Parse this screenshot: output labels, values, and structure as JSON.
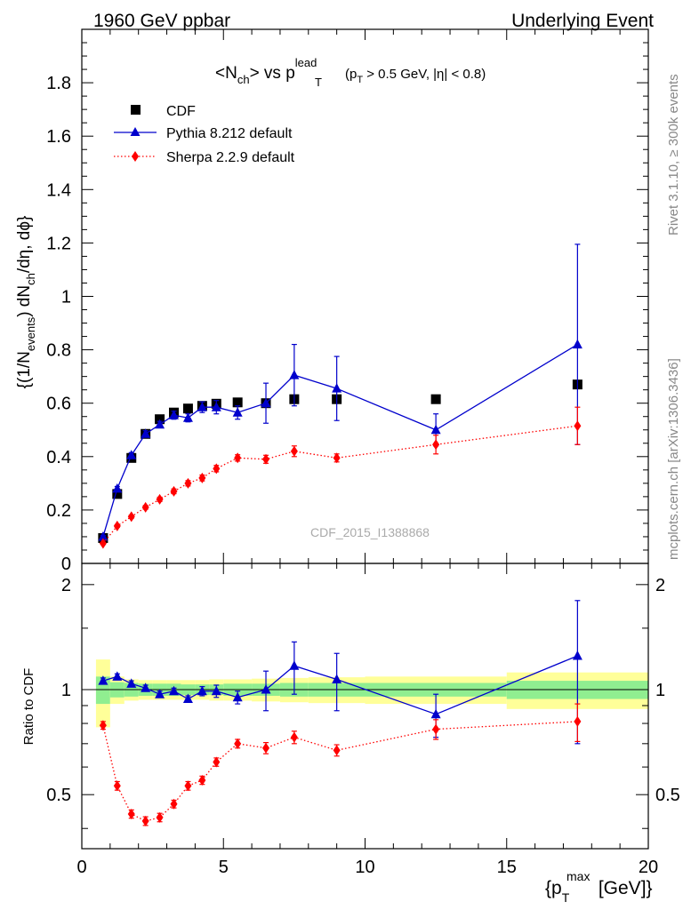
{
  "header": {
    "left": "1960 GeV ppbar",
    "right": "Underlying Event"
  },
  "side_labels": {
    "rivet": "Rivet 3.1.10, ≥ 300k events",
    "mcplots": "mcplots.cern.ch [arXiv:1306.3436]"
  },
  "chart_data": [
    {
      "type": "scatter",
      "panel": "main",
      "title_parts": {
        "open": "<N",
        "sub1": "ch",
        "mid": "> vs p",
        "sup2": "lead",
        "sub2": "T",
        "cut_open": "(p",
        "cut_sub": "T",
        "cut_rest": " > 0.5 GeV, |η| < 0.8)"
      },
      "ylabel_parts": {
        "a": "{(1/N",
        "a_sub": "events",
        "b": ") dN",
        "b_sub": "ch",
        "c": "/dη, dϕ}"
      },
      "watermark": "CDF_2015_I1388868",
      "ylim": [
        0,
        2.0
      ],
      "yticks": [
        {
          "v": 0,
          "label": "0"
        },
        {
          "v": 0.2,
          "label": "0.2"
        },
        {
          "v": 0.4,
          "label": "0.4"
        },
        {
          "v": 0.6,
          "label": "0.6"
        },
        {
          "v": 0.8,
          "label": "0.8"
        },
        {
          "v": 1.0,
          "label": "1"
        },
        {
          "v": 1.2,
          "label": "1.2"
        },
        {
          "v": 1.4,
          "label": "1.4"
        },
        {
          "v": 1.6,
          "label": "1.6"
        },
        {
          "v": 1.8,
          "label": "1.8"
        }
      ],
      "legend_position": "top-left",
      "series": [
        {
          "name": "CDF",
          "style": "square",
          "color": "#000000",
          "x": [
            0.75,
            1.25,
            1.75,
            2.25,
            2.75,
            3.25,
            3.75,
            4.25,
            4.75,
            5.5,
            6.5,
            7.5,
            9.0,
            12.5,
            17.5
          ],
          "y": [
            0.095,
            0.26,
            0.395,
            0.485,
            0.54,
            0.565,
            0.58,
            0.59,
            0.598,
            0.603,
            0.6,
            0.615,
            0.615,
            0.615,
            0.67
          ],
          "err": [
            0,
            0,
            0,
            0,
            0,
            0,
            0,
            0,
            0,
            0,
            0,
            0,
            0,
            0,
            0
          ]
        },
        {
          "name": "Pythia 8.212 default",
          "style": "triangle-solid",
          "color": "#0000cc",
          "x": [
            0.75,
            1.25,
            1.75,
            2.25,
            2.75,
            3.25,
            3.75,
            4.25,
            4.75,
            5.5,
            6.5,
            7.5,
            9.0,
            12.5,
            17.5
          ],
          "y": [
            0.1,
            0.28,
            0.405,
            0.485,
            0.52,
            0.555,
            0.545,
            0.585,
            0.585,
            0.565,
            0.6,
            0.705,
            0.655,
            0.5,
            0.82
          ],
          "err": [
            0.005,
            0.008,
            0.01,
            0.012,
            0.012,
            0.015,
            0.015,
            0.02,
            0.025,
            0.025,
            0.075,
            0.115,
            0.12,
            0.06,
            0.375
          ]
        },
        {
          "name": "Sherpa 2.2.9 default",
          "style": "diamond-dotted",
          "color": "#ff0000",
          "x": [
            0.75,
            1.25,
            1.75,
            2.25,
            2.75,
            3.25,
            3.75,
            4.25,
            4.75,
            5.5,
            6.5,
            7.5,
            9.0,
            12.5,
            17.5
          ],
          "y": [
            0.075,
            0.14,
            0.175,
            0.21,
            0.24,
            0.27,
            0.3,
            0.32,
            0.355,
            0.395,
            0.39,
            0.42,
            0.395,
            0.445,
            0.515
          ],
          "err": [
            0.003,
            0.005,
            0.006,
            0.007,
            0.008,
            0.009,
            0.01,
            0.011,
            0.012,
            0.012,
            0.015,
            0.02,
            0.015,
            0.035,
            0.07
          ]
        }
      ]
    },
    {
      "type": "scatter",
      "panel": "ratio",
      "ylabel": "Ratio to CDF",
      "xlabel_parts": {
        "open": "{p",
        "sub": "T",
        "sup": "max",
        "rest": " [GeV]}"
      },
      "xlim": [
        0,
        20
      ],
      "xticks": [
        {
          "v": 0,
          "label": "0"
        },
        {
          "v": 5,
          "label": "5"
        },
        {
          "v": 10,
          "label": "10"
        },
        {
          "v": 15,
          "label": "15"
        },
        {
          "v": 20,
          "label": "20"
        }
      ],
      "ylim": [
        0.35,
        2.3
      ],
      "log_y": true,
      "yticks": [
        {
          "v": 0.5,
          "label": "0.5"
        },
        {
          "v": 1.0,
          "label": "1"
        },
        {
          "v": 2.0,
          "label": "2"
        }
      ],
      "bands": {
        "bins": [
          [
            0.5,
            1.0
          ],
          [
            1.0,
            1.5
          ],
          [
            1.5,
            2.0
          ],
          [
            2.0,
            2.5
          ],
          [
            2.5,
            3.0
          ],
          [
            3.0,
            3.5
          ],
          [
            3.5,
            4.0
          ],
          [
            4.0,
            4.5
          ],
          [
            4.5,
            5.0
          ],
          [
            5.0,
            6.0
          ],
          [
            6.0,
            7.0
          ],
          [
            7.0,
            8.0
          ],
          [
            8.0,
            10.0
          ],
          [
            10.0,
            15.0
          ],
          [
            15.0,
            20.0
          ]
        ],
        "inner_half": [
          0.09,
          0.05,
          0.045,
          0.04,
          0.04,
          0.04,
          0.035,
          0.035,
          0.035,
          0.04,
          0.04,
          0.045,
          0.045,
          0.045,
          0.06
        ],
        "outer_half": [
          0.22,
          0.09,
          0.07,
          0.065,
          0.065,
          0.065,
          0.065,
          0.065,
          0.07,
          0.07,
          0.075,
          0.08,
          0.085,
          0.09,
          0.12
        ],
        "inner_color": "#90ee90",
        "outer_color": "#ffff99"
      },
      "series": [
        {
          "name": "Pythia 8.212 default",
          "style": "triangle-solid",
          "color": "#0000cc",
          "x": [
            0.75,
            1.25,
            1.75,
            2.25,
            2.75,
            3.25,
            3.75,
            4.25,
            4.75,
            5.5,
            6.5,
            7.5,
            9.0,
            12.5,
            17.5
          ],
          "y": [
            1.06,
            1.09,
            1.04,
            1.01,
            0.97,
            0.99,
            0.94,
            0.99,
            0.99,
            0.95,
            1.0,
            1.17,
            1.07,
            0.85,
            1.25
          ],
          "err": [
            0.02,
            0.02,
            0.02,
            0.02,
            0.02,
            0.02,
            0.02,
            0.03,
            0.04,
            0.04,
            0.13,
            0.2,
            0.2,
            0.12,
            0.55
          ]
        },
        {
          "name": "Sherpa 2.2.9 default",
          "style": "diamond-dotted",
          "color": "#ff0000",
          "x": [
            0.75,
            1.25,
            1.75,
            2.25,
            2.75,
            3.25,
            3.75,
            4.25,
            4.75,
            5.5,
            6.5,
            7.5,
            9.0,
            12.5,
            17.5
          ],
          "y": [
            0.79,
            0.53,
            0.44,
            0.42,
            0.43,
            0.47,
            0.53,
            0.55,
            0.62,
            0.7,
            0.68,
            0.73,
            0.67,
            0.77,
            0.81
          ],
          "err": [
            0.02,
            0.015,
            0.012,
            0.012,
            0.012,
            0.012,
            0.015,
            0.015,
            0.017,
            0.02,
            0.025,
            0.03,
            0.025,
            0.05,
            0.1
          ]
        }
      ]
    }
  ]
}
